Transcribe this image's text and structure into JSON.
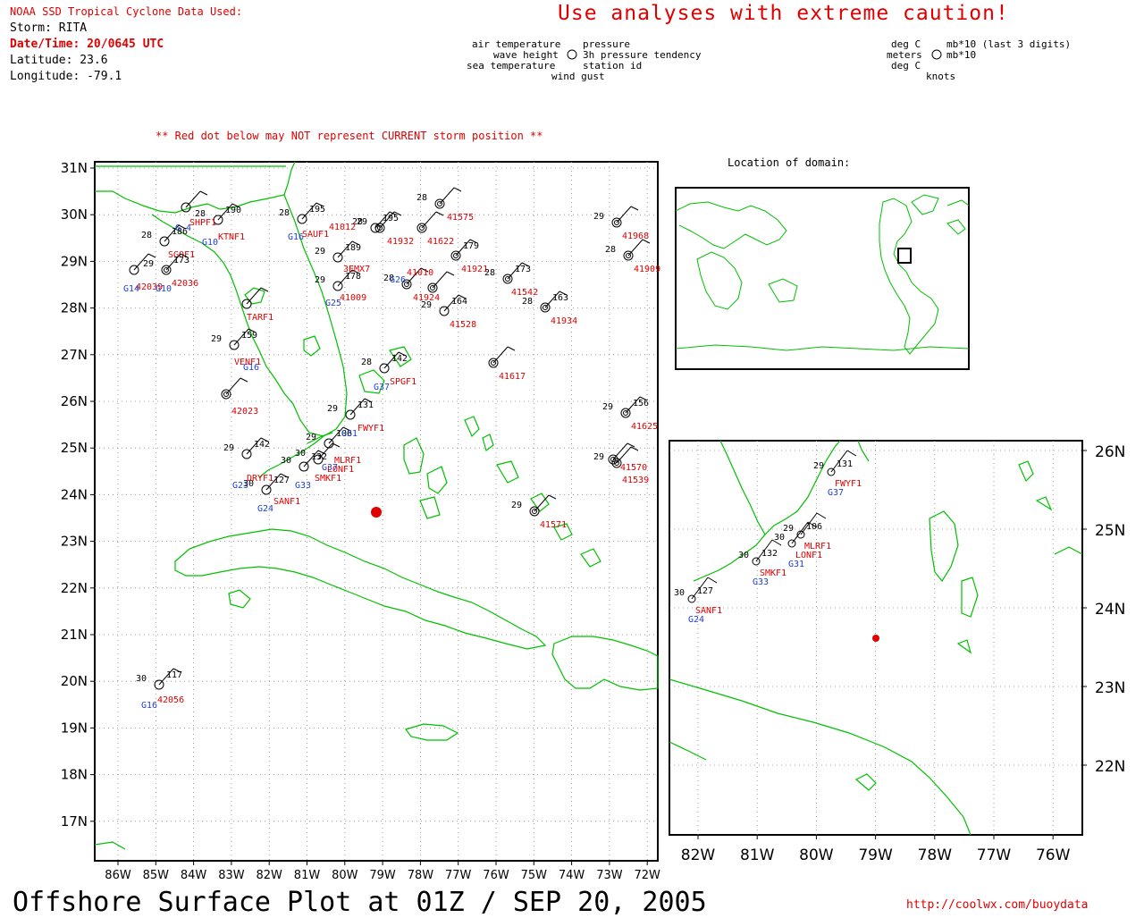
{
  "header": {
    "source_line": "NOAA SSD Tropical Cyclone Data Used:",
    "storm_line": "Storm: RITA",
    "datetime_line": "Date/Time: 20/0645 UTC",
    "latitude_line": "Latitude: 23.6",
    "longitude_line": "Longitude: -79.1",
    "caution": "Use analyses with extreme caution!",
    "red_dot_note": "** Red dot below may NOT represent CURRENT storm position **",
    "domain_title": "Location of domain:"
  },
  "legend": {
    "left_labels": [
      "air temperature",
      "wave height",
      "sea temperature"
    ],
    "right_labels": [
      "pressure",
      "3h pressure tendency",
      "station id",
      "wind gust"
    ],
    "units_left": [
      "deg C",
      "meters",
      "deg C"
    ],
    "units_right": [
      "mb*10 (last 3 digits)",
      "mb*10",
      "knots"
    ]
  },
  "footer": {
    "title": "Offshore Surface Plot at 01Z / SEP 20, 2005",
    "url": "http://coolwx.com/buoydata"
  },
  "main_map": {
    "lat_labels": [
      "31N",
      "30N",
      "29N",
      "28N",
      "27N",
      "26N",
      "25N",
      "24N",
      "23N",
      "22N",
      "21N",
      "20N",
      "19N",
      "18N",
      "17N"
    ],
    "lon_labels": [
      "86W",
      "85W",
      "84W",
      "83W",
      "82W",
      "81W",
      "80W",
      "79W",
      "78W",
      "77W",
      "76W",
      "75W",
      "74W",
      "73W",
      "72W"
    ]
  },
  "inset_map": {
    "lat_labels": [
      "26N",
      "25N",
      "24N",
      "23N",
      "22N"
    ],
    "lon_labels": [
      "82W",
      "81W",
      "80W",
      "79W",
      "78W",
      "77W",
      "76W"
    ]
  },
  "colors": {
    "coast": "#00c000",
    "station_id": "#e00000",
    "station_blue": "#1f3fd0",
    "storm_dot": "#e00000",
    "grid": "#888888"
  },
  "stations_main": [
    {
      "id": "41575",
      "t": "28",
      "p": ""
    },
    {
      "id": "41012",
      "t": "28",
      "p": "195"
    },
    {
      "id": "41932",
      "t": "29",
      "p": ""
    },
    {
      "id": "41622",
      "t": "",
      "p": ""
    },
    {
      "id": "41968",
      "t": "29",
      "p": ""
    },
    {
      "id": "41909",
      "t": "28",
      "p": ""
    },
    {
      "id": "41921",
      "t": "",
      "p": "179"
    },
    {
      "id": "41010",
      "t": "28",
      "p": ""
    },
    {
      "id": "41009",
      "t": "29",
      "p": "178"
    },
    {
      "id": "41542",
      "t": "28",
      "p": "173"
    },
    {
      "id": "41934",
      "t": "28",
      "p": "163"
    },
    {
      "id": "41924",
      "t": "",
      "p": ""
    },
    {
      "id": "41528",
      "t": "29",
      "p": "164"
    },
    {
      "id": "41617",
      "t": "",
      "p": ""
    },
    {
      "id": "SPGF1",
      "t": "28",
      "p": "142"
    },
    {
      "id": "FWYF1",
      "t": "29",
      "p": "131"
    },
    {
      "id": "41625",
      "t": "29",
      "p": "156"
    },
    {
      "id": "41539",
      "t": "29",
      "p": ""
    },
    {
      "id": "41570",
      "t": "",
      "p": ""
    },
    {
      "id": "41571",
      "t": "29",
      "p": ""
    },
    {
      "id": "MLRF1",
      "t": "29",
      "p": "106"
    },
    {
      "id": "LONF1",
      "t": "30",
      "p": ""
    },
    {
      "id": "SMKF1",
      "t": "30",
      "p": "132"
    },
    {
      "id": "SANF1",
      "t": "30",
      "p": "127"
    },
    {
      "id": "42023",
      "t": "",
      "p": ""
    },
    {
      "id": "42056",
      "t": "30",
      "p": "117"
    },
    {
      "id": "KTNF1",
      "t": "28",
      "p": "190"
    },
    {
      "id": "SHPF1",
      "t": "",
      "p": ""
    },
    {
      "id": "SGOF1",
      "t": "28",
      "p": "186"
    },
    {
      "id": "42036",
      "t": "29",
      "p": "173"
    },
    {
      "id": "42039",
      "t": "",
      "p": ""
    },
    {
      "id": "SAUF1",
      "t": "28",
      "p": "195"
    },
    {
      "id": "3EMX7",
      "t": "29",
      "p": "189"
    },
    {
      "id": "TARF1",
      "t": "",
      "p": ""
    },
    {
      "id": "VENF1",
      "t": "29",
      "p": "159"
    },
    {
      "id": "DRYF1",
      "t": "29",
      "p": "142"
    }
  ],
  "blue_ids": [
    "G 4",
    "G10",
    "G14",
    "G10",
    "G16",
    "G16",
    "G25",
    "G26",
    "G37",
    "G33",
    "G37",
    "G24",
    "G23",
    "G16",
    "G31"
  ],
  "inset_stations": [
    {
      "id": "FWYF1",
      "id2": "G37",
      "t": "29",
      "p": "131"
    },
    {
      "id": "MLRF1",
      "id2": "",
      "t": "29",
      "p": "106"
    },
    {
      "id": "LONF1",
      "id2": "G31",
      "t": "30",
      "p": ""
    },
    {
      "id": "SMKF1",
      "id2": "G33",
      "t": "30",
      "p": "132"
    },
    {
      "id": "SANF1",
      "id2": "G24",
      "t": "30",
      "p": "127"
    }
  ]
}
